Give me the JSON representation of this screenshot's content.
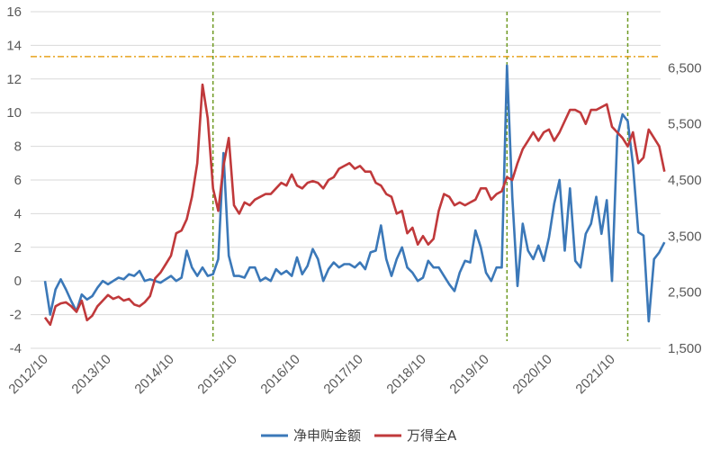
{
  "chart_data": {
    "type": "line",
    "title": "",
    "legend_position": "bottom",
    "grid": true,
    "x_ticks": [
      "2012/10",
      "2013/10",
      "2014/10",
      "2015/10",
      "2016/10",
      "2017/10",
      "2018/10",
      "2019/10",
      "2020/10",
      "2021/10"
    ],
    "y_left": {
      "min": -4,
      "max": 16,
      "ticks": [
        "-4",
        "-2",
        "0",
        "2",
        "4",
        "6",
        "8",
        "10",
        "12",
        "14",
        "16"
      ]
    },
    "y_right": {
      "min": 1500,
      "max": 7500,
      "ticks": [
        "1,500",
        "2,500",
        "3,500",
        "4,500",
        "5,500",
        "6,500"
      ]
    },
    "reference_line_right": 6700,
    "vertical_markers": [
      "2015/06",
      "2020/02",
      "2022/01"
    ],
    "series": [
      {
        "name": "净申购金额",
        "axis": "left",
        "color": "#3b78b8",
        "start": "2012/10",
        "values": [
          0,
          -2,
          -0.5,
          0.1,
          -0.5,
          -1.2,
          -1.8,
          -0.8,
          -1.1,
          -0.9,
          -0.4,
          0,
          -0.2,
          0,
          0.2,
          0.1,
          0.4,
          0.3,
          0.6,
          0,
          0.1,
          0,
          -0.1,
          0.1,
          0.3,
          0,
          0.2,
          1.8,
          0.8,
          0.3,
          0.8,
          0.3,
          0.4,
          1.3,
          7.6,
          1.5,
          0.3,
          0.3,
          0.2,
          0.8,
          0.8,
          0,
          0.2,
          0,
          0.7,
          0.4,
          0.6,
          0.3,
          1.4,
          0.4,
          0.9,
          1.9,
          1.3,
          0,
          0.7,
          1.1,
          0.8,
          1,
          1,
          0.8,
          1.1,
          0.7,
          1.7,
          1.8,
          3.3,
          1.3,
          0.3,
          1.3,
          2,
          0.8,
          0.5,
          0,
          0.2,
          1.2,
          0.8,
          0.8,
          0.3,
          -0.2,
          -0.6,
          0.5,
          1.2,
          1.1,
          3,
          2,
          0.5,
          0,
          0.8,
          0.8,
          12.8,
          5,
          -0.3,
          3.4,
          1.8,
          1.3,
          2.1,
          1.2,
          2.6,
          4.6,
          6,
          1.8,
          5.5,
          1.2,
          0.8,
          2.8,
          3.4,
          5,
          2.8,
          4.8,
          0,
          8.6,
          9.9,
          9.5,
          6.9,
          2.9,
          2.7,
          -2.4,
          1.3,
          1.7,
          2.3
        ]
      },
      {
        "name": "万得全A",
        "axis": "right",
        "color": "#c0393b",
        "start": "2012/10",
        "values": [
          2050,
          1920,
          2250,
          2300,
          2320,
          2250,
          2150,
          2350,
          2000,
          2080,
          2250,
          2350,
          2450,
          2380,
          2420,
          2350,
          2380,
          2280,
          2250,
          2320,
          2430,
          2750,
          2850,
          3000,
          3150,
          3550,
          3600,
          3800,
          4200,
          4800,
          6200,
          5600,
          4350,
          3950,
          4750,
          5250,
          4050,
          3900,
          4100,
          4050,
          4150,
          4200,
          4250,
          4250,
          4350,
          4450,
          4400,
          4600,
          4400,
          4350,
          4450,
          4480,
          4450,
          4350,
          4500,
          4550,
          4700,
          4750,
          4800,
          4700,
          4750,
          4650,
          4650,
          4450,
          4400,
          4250,
          4200,
          3900,
          3950,
          3550,
          3650,
          3350,
          3500,
          3350,
          3450,
          3950,
          4250,
          4200,
          4050,
          4100,
          4050,
          4100,
          4150,
          4350,
          4350,
          4150,
          4250,
          4300,
          4550,
          4500,
          4800,
          5050,
          5200,
          5350,
          5200,
          5350,
          5400,
          5200,
          5350,
          5550,
          5750,
          5750,
          5700,
          5500,
          5750,
          5750,
          5800,
          5850,
          5450,
          5350,
          5250,
          5100,
          5350,
          4800,
          4900,
          5400,
          5250,
          5100,
          4650
        ]
      }
    ]
  }
}
